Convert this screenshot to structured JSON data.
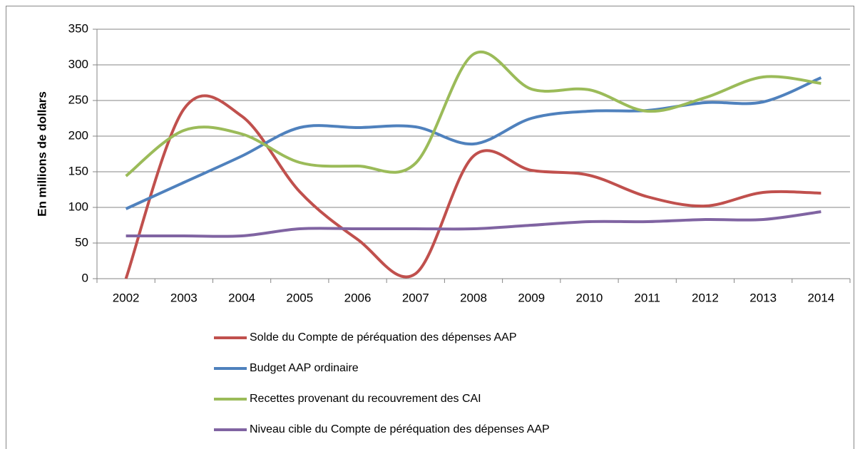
{
  "chart_data": {
    "type": "line",
    "y_label": "En millions de dollars",
    "categories": [
      "2002",
      "2003",
      "2004",
      "2005",
      "2006",
      "2007",
      "2008",
      "2009",
      "2010",
      "2011",
      "2012",
      "2013",
      "2014"
    ],
    "series": [
      {
        "name": "Solde du Compte de péréquation des dépenses AAP",
        "color": "#c0504d",
        "values": [
          0,
          238,
          228,
          122,
          55,
          7,
          172,
          152,
          145,
          115,
          102,
          121,
          120
        ]
      },
      {
        "name": "Budget AAP ordinaire",
        "color": "#4f81bd",
        "values": [
          98,
          135,
          172,
          212,
          212,
          213,
          189,
          225,
          235,
          236,
          247,
          248,
          282
        ]
      },
      {
        "name": "Recettes provenant du recouvrement des CAI",
        "color": "#9bbb59",
        "values": [
          144,
          208,
          203,
          163,
          158,
          162,
          315,
          266,
          265,
          235,
          254,
          283,
          274
        ]
      },
      {
        "name": "Niveau cible du Compte de péréquation des dépenses AAP",
        "color": "#8064a2",
        "values": [
          60,
          60,
          60,
          70,
          70,
          70,
          70,
          75,
          80,
          80,
          83,
          83,
          94
        ]
      }
    ],
    "ylim": [
      0,
      350
    ],
    "yticks": [
      0,
      50,
      100,
      150,
      200,
      250,
      300,
      350
    ],
    "grid": true,
    "smooth": true,
    "legend": "bottom"
  }
}
